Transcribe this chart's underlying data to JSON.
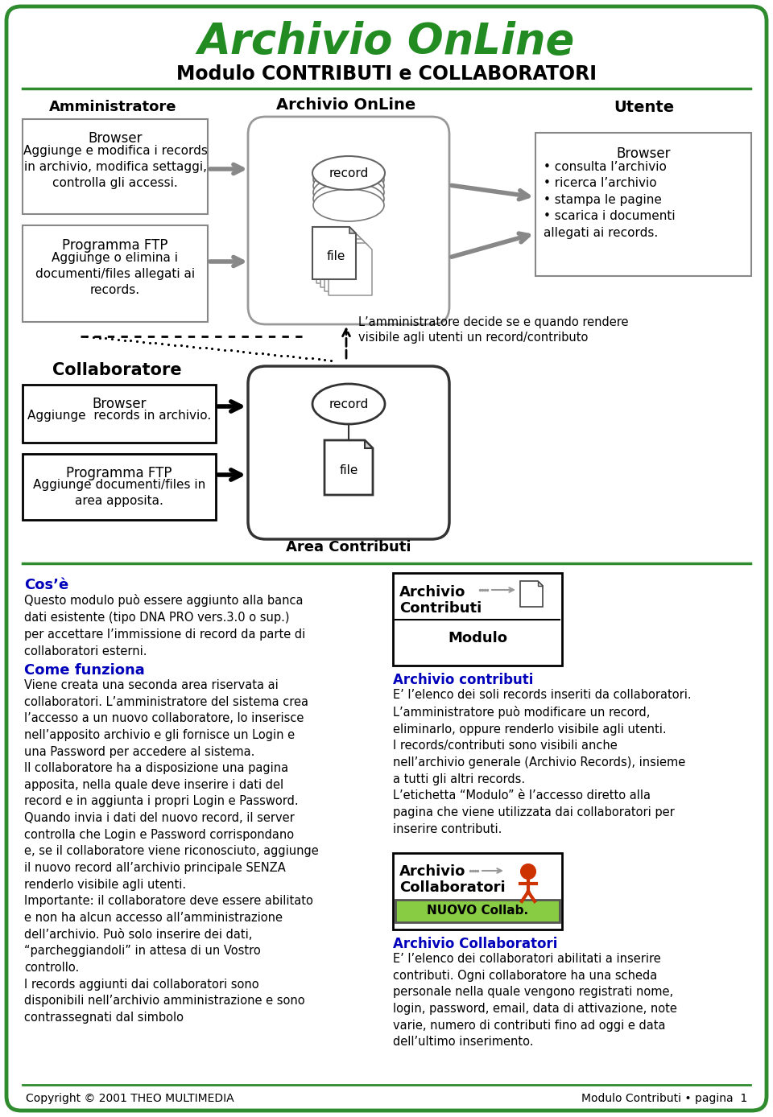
{
  "title1": "Archivio OnLine",
  "title2": "Modulo CONTRIBUTI e COLLABORATORI",
  "bg_color": "#ffffff",
  "border_color": "#2e8b2e",
  "title_color": "#228B22",
  "section_line_color": "#2e8b2e",
  "admin_label": "Amministratore",
  "archive_label": "Archivio OnLine",
  "user_label": "Utente",
  "collab_label": "Collaboratore",
  "area_label": "Area Contributi",
  "admin_box1_title": "Browser",
  "admin_box1_text": "Aggiunge e modifica i records\nin archivio, modifica settaggi,\ncontrolla gli accessi.",
  "admin_box2_title": "Programma FTP",
  "admin_box2_text": "Aggiunge o elimina i\ndocumenti/files allegati ai\nrecords.",
  "user_box_title": "Browser",
  "user_box_text": "• consulta l’archivio\n• ricerca l’archivio\n• stampa le pagine\n• scarica i documenti\nallegati ai records.",
  "collab_box1_title": "Browser",
  "collab_box1_text": "Aggiunge  records in archivio.",
  "collab_box2_title": "Programma FTP",
  "collab_box2_text": "Aggiunge documenti/files in\narea apposita.",
  "admin_note": "L’amministratore decide se e quando rendere\nvisibile agli utenti un record/contributo",
  "cos_title": "Cos’è",
  "cos_text": "Questo modulo può essere aggiunto alla banca\ndati esistente (tipo DNA PRO vers.3.0 o sup.)\nper accettare l’immissione di record da parte di\ncollaboratori esterni.",
  "come_title": "Come funziona",
  "come_text": "Viene creata una seconda area riservata ai\ncollaboratori. L’amministratore del sistema crea\nl’accesso a un nuovo collaboratore, lo inserisce\nnell’apposito archivio e gli fornisce un Login e\nuna Password per accedere al sistema.\nIl collaboratore ha a disposizione una pagina\napposita, nella quale deve inserire i dati del\nrecord e in aggiunta i propri Login e Password.\nQuando invia i dati del nuovo record, il server\ncontrolla che Login e Password corrispondano\ne, se il collaboratore viene riconosciuto, aggiunge\nil nuovo record all’archivio principale SENZA\nrenderlo visibile agli utenti.\nImportante: il collaboratore deve essere abilitato\ne non ha alcun accesso all’amministrazione\ndell’archivio. Può solo inserire dei dati,\n“parcheggiandoli” in attesa di un Vostro\ncontrollo.\nI records aggiunti dai collaboratori sono\ndisponibili nell’archivio amministrazione e sono\ncontrassegnati dal simbolo",
  "archivio_contributi_title": "Archivio contributi",
  "archivio_contributi_text": "E’ l’elenco dei soli records inseriti da collaboratori.\nL’amministratore può modificare un record,\neliminarlo, oppure renderlo visibile agli utenti.\nI records/contributi sono visibili anche\nnell’archivio generale (Archivio Records), insieme\na tutti gli altri records.\nL’etichetta “Modulo” è l’accesso diretto alla\npagina che viene utilizzata dai collaboratori per\ninserire contributi.",
  "archivio_collaboratori_title": "Archivio Collaboratori",
  "archivio_collaboratori_text": "E’ l’elenco dei collaboratori abilitati a inserire\ncontributi. Ogni collaboratore ha una scheda\npersonale nella quale vengono registrati nome,\nlogin, password, email, data di attivazione, note\nvarie, numero di contributi fino ad oggi e data\ndell’ultimo inserimento.",
  "footer_left": "Copyright © 2001 THEO MULTIMEDIA",
  "footer_right": "Modulo Contributi • pagina  1"
}
